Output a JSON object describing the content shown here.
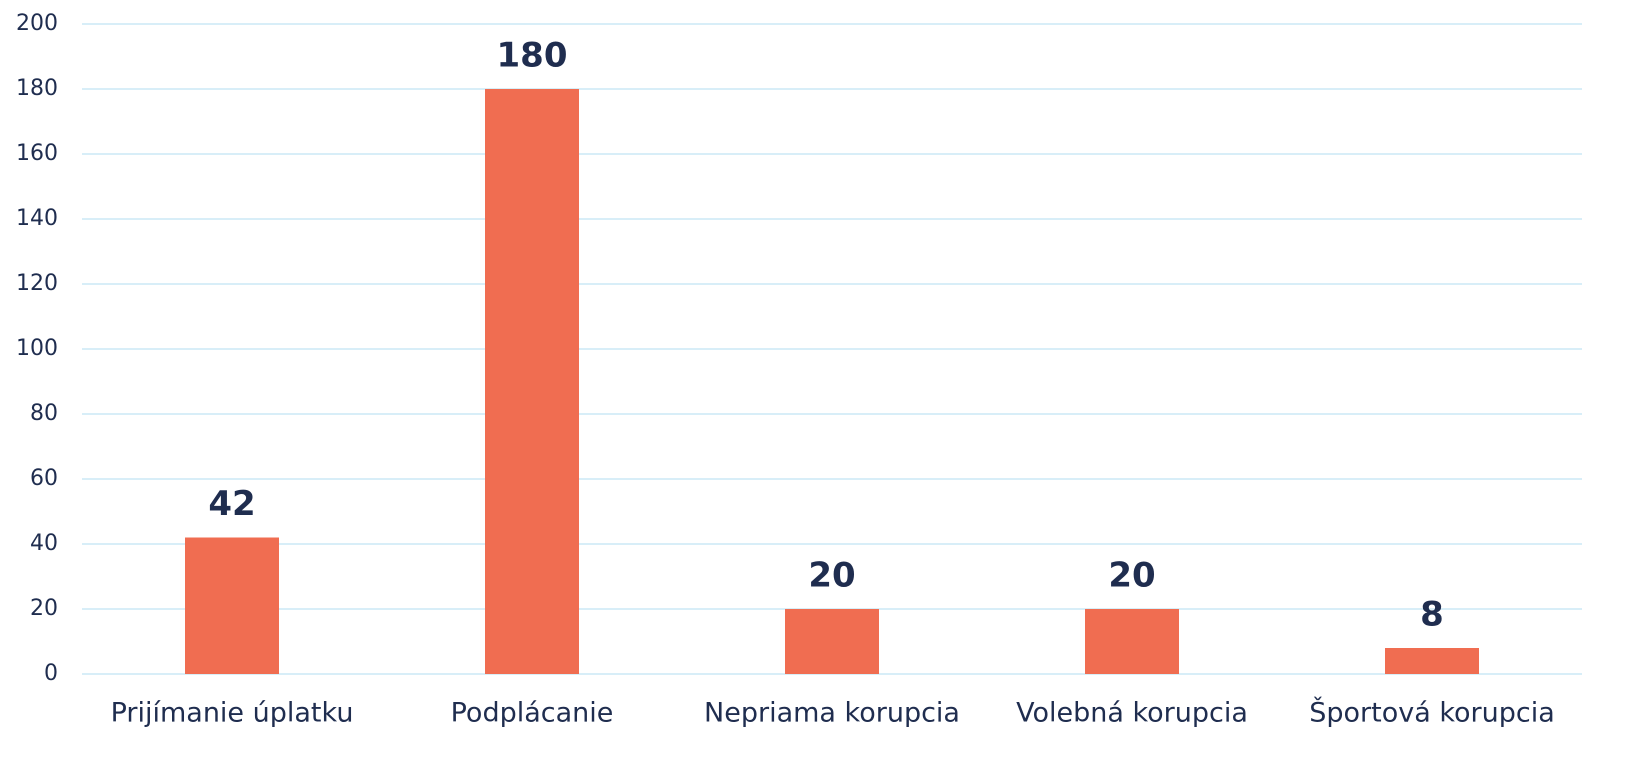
{
  "chart_data": {
    "type": "bar",
    "categories": [
      "Prijímanie úplatku",
      "Podplácanie",
      "Nepriama korupcia",
      "Volebná korupcia",
      "Športová korupcia"
    ],
    "values": [
      42,
      180,
      20,
      20,
      8
    ],
    "color": "#f06d51",
    "ylim": [
      0,
      200
    ],
    "yticks": [
      0,
      20,
      40,
      60,
      80,
      100,
      120,
      140,
      160,
      180,
      200
    ],
    "grid": true
  }
}
